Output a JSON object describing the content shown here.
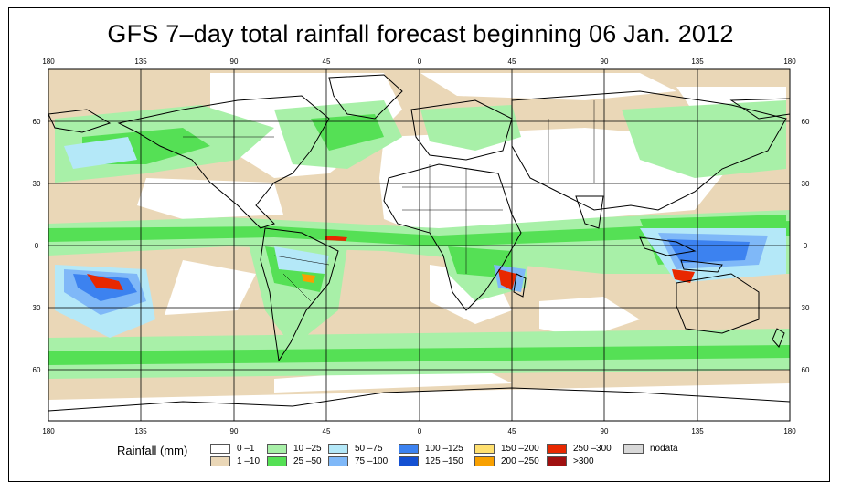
{
  "title": "GFS 7–day total rainfall forecast beginning 06 Jan. 2012",
  "axes": {
    "lon_ticks": [
      "180",
      "135",
      "90",
      "45",
      "0",
      "45",
      "90",
      "135",
      "180"
    ],
    "lat_ticks": [
      "60",
      "30",
      "0",
      "30",
      "60"
    ]
  },
  "legend": {
    "title": "Rainfall (mm)",
    "items": [
      {
        "label": "0 –1",
        "color": "#ffffff"
      },
      {
        "label": "1 –10",
        "color": "#ead7b7"
      },
      {
        "label": "10 –25",
        "color": "#a8f0a8"
      },
      {
        "label": "25 –50",
        "color": "#55e055"
      },
      {
        "label": "50 –75",
        "color": "#b4e8f8"
      },
      {
        "label": "75 –100",
        "color": "#7fb8f8"
      },
      {
        "label": "100 –125",
        "color": "#3c82f0"
      },
      {
        "label": "125 –150",
        "color": "#1450d2"
      },
      {
        "label": "150 –200",
        "color": "#ffe070"
      },
      {
        "label": "200 –250",
        "color": "#f8a000"
      },
      {
        "label": "250 –300",
        "color": "#e82800"
      },
      {
        "label": ">300",
        "color": "#a01010"
      },
      {
        "label": "nodata",
        "color": "#d8d8d8"
      }
    ]
  }
}
